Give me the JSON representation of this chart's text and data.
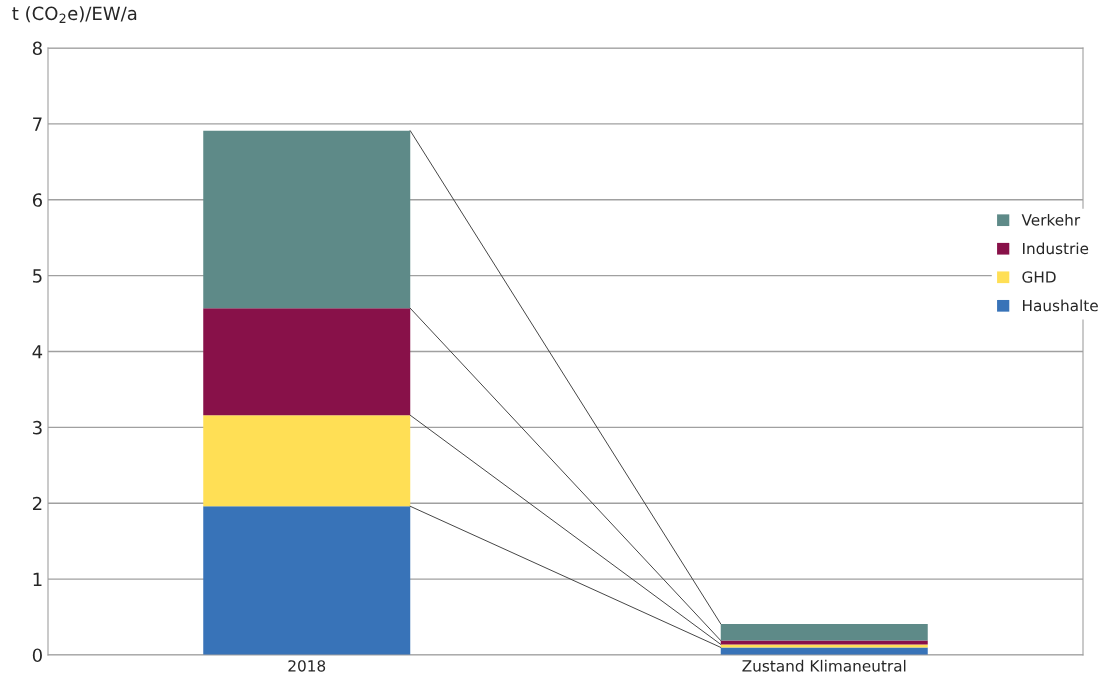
{
  "chart_data": {
    "type": "bar",
    "stacked": true,
    "ylabel": "t (CO$_{2}$e)/EW/a",
    "categories": [
      "2018",
      "Zustand Klimaneutral"
    ],
    "series": [
      {
        "name": "Haushalte",
        "color": "#3873b8",
        "values": [
          1.96,
          0.1
        ]
      },
      {
        "name": "GHD",
        "color": "#ffdf55",
        "values": [
          1.2,
          0.04
        ]
      },
      {
        "name": "Industrie",
        "color": "#881149",
        "values": [
          1.41,
          0.05
        ]
      },
      {
        "name": "Verkehr",
        "color": "#5e8a88",
        "values": [
          2.34,
          0.22
        ]
      }
    ],
    "ylim": [
      0,
      8
    ],
    "yticks": [
      0,
      1,
      2,
      3,
      4,
      5,
      6,
      7,
      8
    ],
    "grid": "y",
    "legend": "right"
  }
}
